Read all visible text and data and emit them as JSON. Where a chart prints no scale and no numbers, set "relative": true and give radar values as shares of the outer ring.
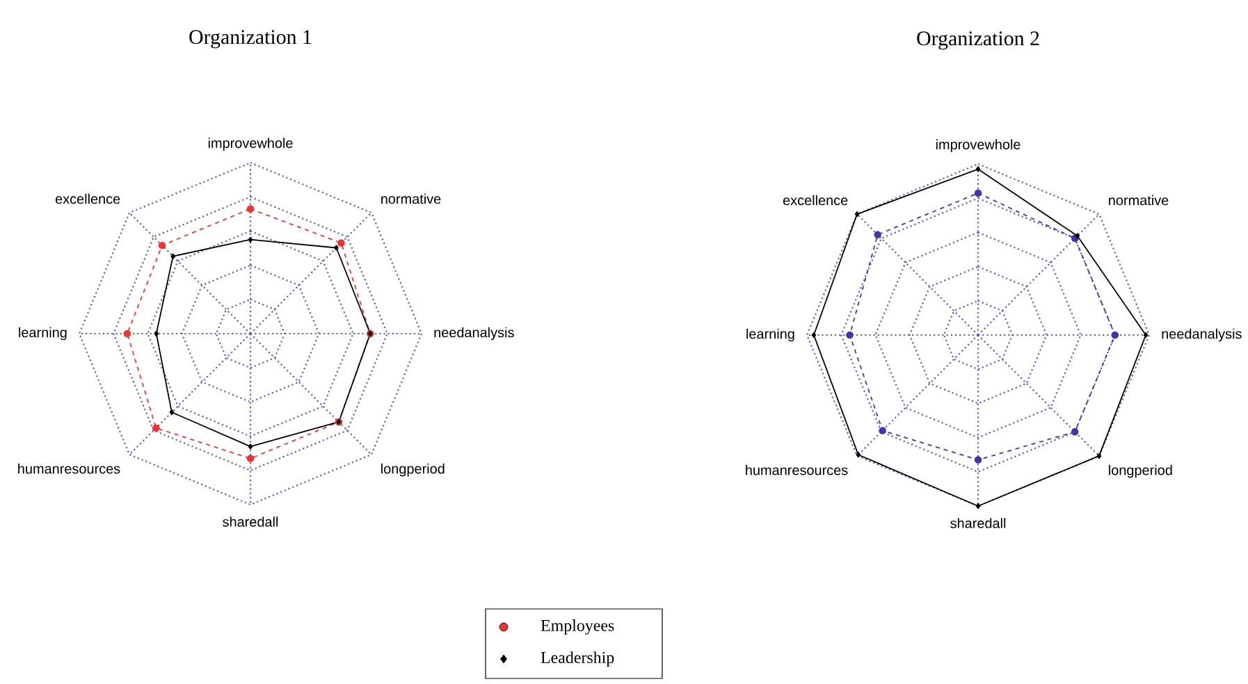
{
  "chart_data": [
    {
      "type": "radar",
      "title": "Organization 1",
      "relative": true,
      "grid": true,
      "legend": "bottom",
      "categories": [
        "improvewhole",
        "normative",
        "needanalysis",
        "longperiod",
        "sharedall",
        "humanresources",
        "learning",
        "excellence"
      ],
      "series": [
        {
          "name": "Employees",
          "color": "#ee3333",
          "marker": "circle",
          "line_style": "dashed",
          "values": [
            0.73,
            0.75,
            0.7,
            0.73,
            0.73,
            0.78,
            0.72,
            0.73
          ]
        },
        {
          "name": "Leadership",
          "color": "#000000",
          "marker": "diamond",
          "line_style": "solid",
          "values": [
            0.55,
            0.71,
            0.7,
            0.73,
            0.66,
            0.65,
            0.55,
            0.64
          ]
        }
      ]
    },
    {
      "type": "radar",
      "title": "Organization 2",
      "relative": true,
      "grid": true,
      "categories": [
        "improvewhole",
        "normative",
        "needanalysis",
        "longperiod",
        "sharedall",
        "humanresources",
        "learning",
        "excellence"
      ],
      "series": [
        {
          "color": "#4433aa",
          "marker": "circle",
          "line_style": "dashed",
          "values": [
            0.83,
            0.8,
            0.8,
            0.8,
            0.73,
            0.79,
            0.75,
            0.83
          ]
        },
        {
          "color": "#000000",
          "marker": "diamond",
          "line_style": "solid",
          "values": [
            0.97,
            0.82,
            0.98,
            1.0,
            1.0,
            0.99,
            0.96,
            1.0
          ]
        }
      ]
    }
  ]
}
